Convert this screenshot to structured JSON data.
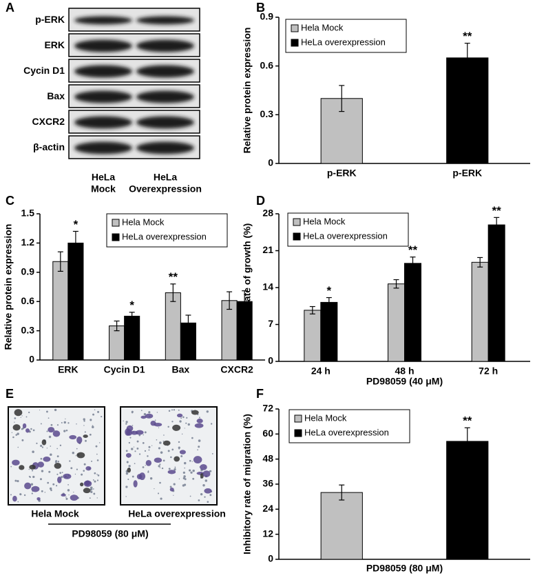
{
  "panel_labels": [
    "A",
    "B",
    "C",
    "D",
    "E",
    "F"
  ],
  "blot": {
    "rows": [
      "p-ERK",
      "ERK",
      "Cycin D1",
      "Bax",
      "CXCR2",
      "β-actin"
    ],
    "lanes": [
      [
        "HeLa",
        "Mock"
      ],
      [
        "HeLa",
        "Overexpression"
      ]
    ]
  },
  "micrograph": {
    "labels": [
      "Hela Mock",
      "HeLa overexpression"
    ],
    "treatment": "PD98059 (80 μM)"
  },
  "chart_data": [
    {
      "type": "bar",
      "ylabel": "Relative protein expression",
      "categories": [
        "p-ERK",
        "p-ERK"
      ],
      "ylim": [
        0,
        0.9
      ],
      "yticks": [
        0,
        0.3,
        0.6,
        0.9
      ],
      "legend": "upper left",
      "series": [
        {
          "name": "Hela Mock",
          "color": "#c0c0c0",
          "values": [
            0.4,
            null
          ],
          "errors": [
            0.08,
            null
          ],
          "annotations": [
            null,
            null
          ]
        },
        {
          "name": "HeLa overexpression",
          "color": "#000000",
          "values": [
            null,
            0.65
          ],
          "errors": [
            null,
            0.09
          ],
          "annotations": [
            null,
            "**"
          ]
        }
      ]
    },
    {
      "type": "bar",
      "ylabel": "Relative protein expression",
      "categories": [
        "ERK",
        "Cycin D1",
        "Bax",
        "CXCR2"
      ],
      "ylim": [
        0,
        1.5
      ],
      "yticks": [
        0,
        0.3,
        0.6,
        0.9,
        1.2,
        1.5
      ],
      "legend": "upper right",
      "series": [
        {
          "name": "Hela Mock",
          "color": "#c0c0c0",
          "values": [
            1.01,
            0.35,
            0.69,
            0.61
          ],
          "errors": [
            0.1,
            0.05,
            0.09,
            0.09
          ],
          "annotations": [
            null,
            null,
            "**",
            null
          ]
        },
        {
          "name": "HeLa overexpression",
          "color": "#000000",
          "values": [
            1.2,
            0.45,
            0.38,
            0.6
          ],
          "errors": [
            0.12,
            0.04,
            0.08,
            0.11
          ],
          "annotations": [
            "*",
            "*",
            null,
            null
          ]
        }
      ]
    },
    {
      "type": "bar",
      "ylabel": "Inhibitory rate of growth (%)",
      "xlabel": "PD98059 (40 μM)",
      "categories": [
        "24 h",
        "48 h",
        "72 h"
      ],
      "ylim": [
        0,
        28
      ],
      "yticks": [
        0,
        7,
        14,
        21,
        28
      ],
      "legend": "upper left",
      "series": [
        {
          "name": "Hela Mock",
          "color": "#c0c0c0",
          "values": [
            9.7,
            14.7,
            18.8
          ],
          "errors": [
            0.7,
            0.8,
            0.9
          ],
          "annotations": [
            null,
            null,
            null
          ]
        },
        {
          "name": "HeLa overexpression",
          "color": "#000000",
          "values": [
            11.2,
            18.6,
            25.9
          ],
          "errors": [
            0.9,
            1.2,
            1.4
          ],
          "annotations": [
            "*",
            "**",
            "**"
          ]
        }
      ]
    },
    {
      "type": "bar",
      "ylabel": "Inhibitory rate of migration (%)",
      "xlabel": "PD98059 (80 μM)",
      "categories": [
        null,
        null
      ],
      "ylim": [
        0,
        72
      ],
      "yticks": [
        0,
        12,
        24,
        36,
        48,
        60,
        72
      ],
      "legend": "upper left",
      "series": [
        {
          "name": "Hela Mock",
          "color": "#c0c0c0",
          "values": [
            32,
            null
          ],
          "errors": [
            3.6,
            null
          ],
          "annotations": [
            null,
            null
          ]
        },
        {
          "name": "HeLa overexpression",
          "color": "#000000",
          "values": [
            null,
            56.5
          ],
          "errors": [
            null,
            6.5
          ],
          "annotations": [
            null,
            "**"
          ]
        }
      ]
    }
  ]
}
